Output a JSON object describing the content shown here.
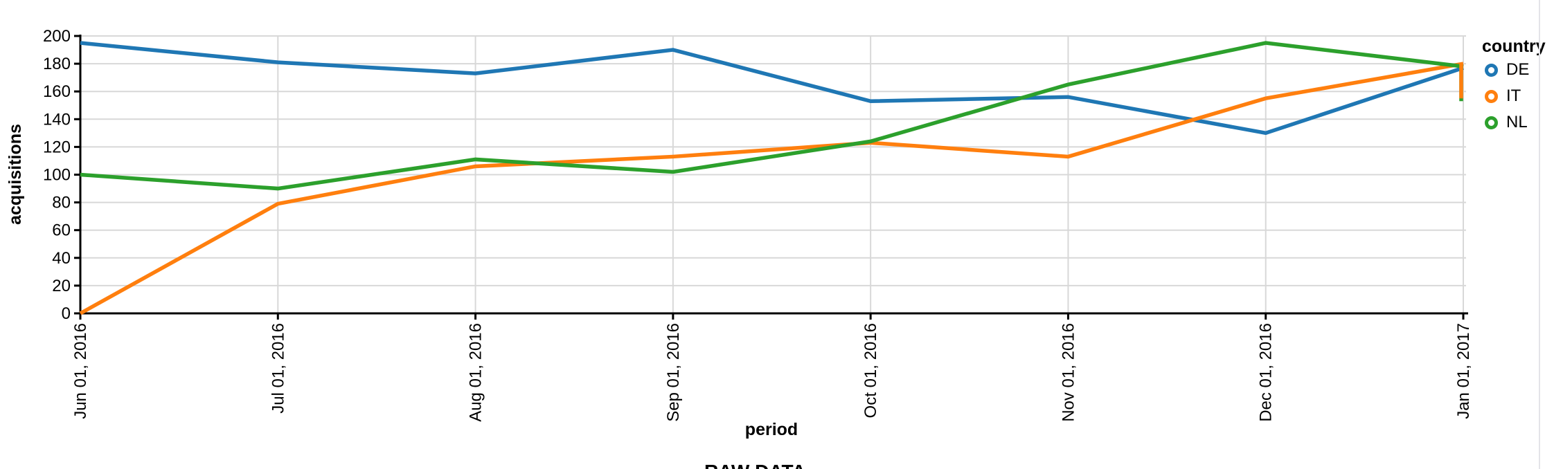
{
  "axes": {
    "y_title": "acquisitions",
    "x_title": "period"
  },
  "legend": {
    "title": "country",
    "items": [
      {
        "label": "DE",
        "color": "#1f77b4"
      },
      {
        "label": "IT",
        "color": "#ff7f0e"
      },
      {
        "label": "NL",
        "color": "#2ca02c"
      }
    ]
  },
  "footer": {
    "partial_heading": "RAW DATA"
  },
  "chart_data": {
    "type": "line",
    "x_field": "period",
    "y_field": "acquisitions",
    "color_field": "country",
    "categories": [
      "Jun 01, 2016",
      "Jul 01, 2016",
      "Aug 01, 2016",
      "Sep 01, 2016",
      "Oct 01, 2016",
      "Nov 01, 2016",
      "Dec 01, 2016",
      "Jan 01, 2017"
    ],
    "series": [
      {
        "name": "DE",
        "color": "#1f77b4",
        "values": [
          195,
          181,
          173,
          190,
          153,
          156,
          130,
          177
        ]
      },
      {
        "name": "IT",
        "color": "#ff7f0e",
        "values": [
          0,
          79,
          106,
          113,
          123,
          113,
          155,
          180
        ]
      },
      {
        "name": "NL",
        "color": "#2ca02c",
        "values": [
          100,
          90,
          111,
          102,
          124,
          165,
          195,
          178
        ]
      }
    ],
    "edge_clip_drops": [
      {
        "name": "NL",
        "color": "#2ca02c",
        "from": 178,
        "to": 153
      },
      {
        "name": "IT",
        "color": "#ff7f0e",
        "from": 180,
        "to": 155
      }
    ],
    "ylim": [
      0,
      200
    ],
    "y_ticks": [
      0,
      20,
      40,
      60,
      80,
      100,
      120,
      140,
      160,
      180,
      200
    ],
    "grid": true,
    "legend_position": "right",
    "x_label_angle": -90
  }
}
